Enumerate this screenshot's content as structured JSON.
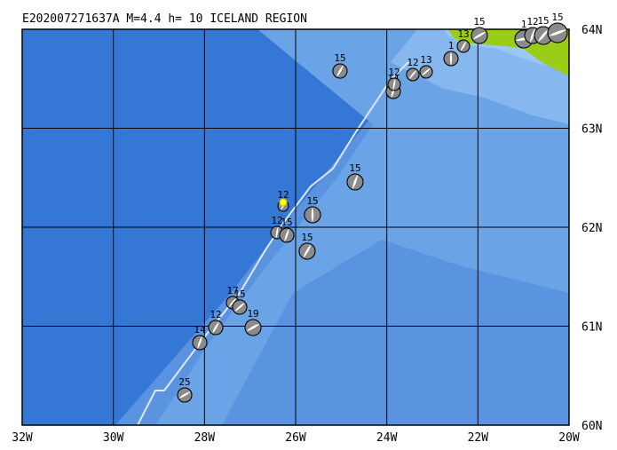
{
  "title": "E202007271637A M=4.4 h= 10 ICELAND REGION",
  "lon_labels": [
    "32W",
    "30W",
    "28W",
    "26W",
    "24W",
    "22W",
    "20W"
  ],
  "lat_labels": [
    "60N",
    "61N",
    "62N",
    "63N",
    "64N"
  ],
  "events": [
    {
      "depth": "15"
    },
    {
      "depth": "14"
    },
    {
      "depth": "12"
    },
    {
      "depth": "12"
    },
    {
      "depth": "13"
    },
    {
      "depth": "1"
    },
    {
      "depth": "13"
    },
    {
      "depth": "15"
    },
    {
      "depth": "1"
    },
    {
      "depth": "12"
    },
    {
      "depth": "15"
    },
    {
      "depth": "15"
    },
    {
      "depth": "15"
    },
    {
      "depth": "12"
    },
    {
      "depth": "15"
    },
    {
      "depth": "12"
    },
    {
      "depth": "15"
    },
    {
      "depth": "15"
    },
    {
      "depth": "17"
    },
    {
      "depth": "15"
    },
    {
      "depth": "12"
    },
    {
      "depth": "19"
    },
    {
      "depth": "14"
    },
    {
      "depth": "25"
    }
  ]
}
